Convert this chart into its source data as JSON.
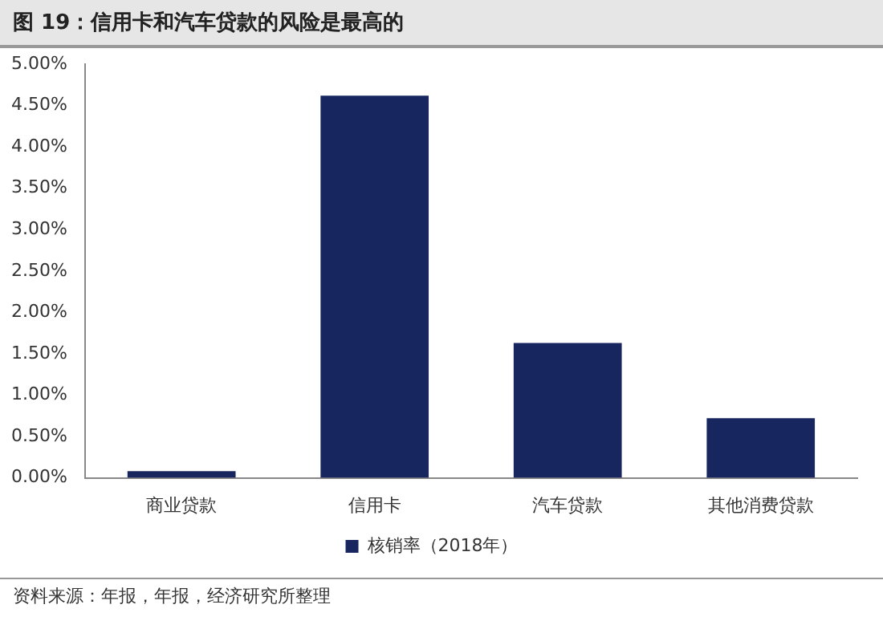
{
  "chart_data": {
    "type": "bar",
    "title": "图 19：信用卡和汽车贷款的风险是最高的",
    "categories": [
      "商业贷款",
      "信用卡",
      "汽车贷款",
      "其他消费贷款"
    ],
    "series": [
      {
        "name": "核销率（2018年）",
        "color": "#17265e",
        "values": [
          0.08,
          4.62,
          1.63,
          0.72
        ]
      }
    ],
    "ylim": [
      0,
      5
    ],
    "yticks": [
      {
        "value": 0,
        "label": "0.00%"
      },
      {
        "value": 0.5,
        "label": "0.50%"
      },
      {
        "value": 1,
        "label": "1.00%"
      },
      {
        "value": 1.5,
        "label": "1.50%"
      },
      {
        "value": 2,
        "label": "2.00%"
      },
      {
        "value": 2.5,
        "label": "2.50%"
      },
      {
        "value": 3,
        "label": "3.00%"
      },
      {
        "value": 3.5,
        "label": "3.50%"
      },
      {
        "value": 4,
        "label": "4.00%"
      },
      {
        "value": 4.5,
        "label": "4.50%"
      },
      {
        "value": 5,
        "label": "5.00%"
      }
    ],
    "grid": false,
    "legend": "bottom",
    "annotations": [
      "资料来源：年报，年报，经济研究所整理"
    ]
  }
}
